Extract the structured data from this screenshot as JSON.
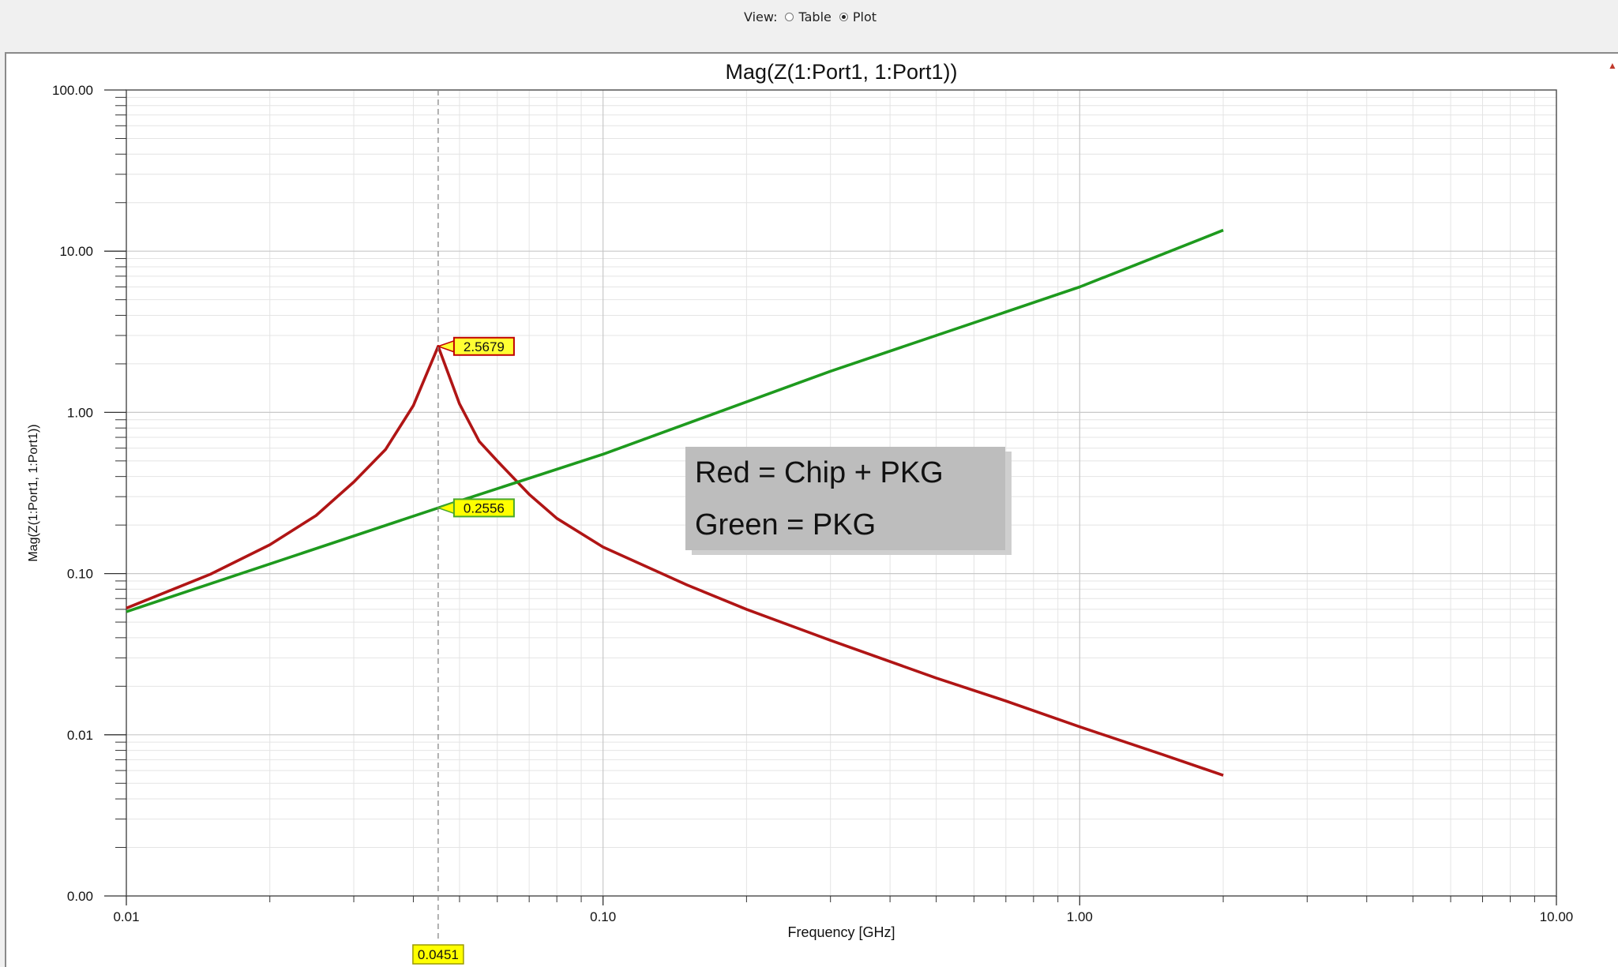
{
  "toolbar": {
    "view_label": "View:",
    "options": [
      {
        "label": "Table",
        "selected": false
      },
      {
        "label": "Plot",
        "selected": true
      }
    ]
  },
  "chart_data": {
    "type": "line",
    "title": "Mag(Z(1:Port1, 1:Port1))",
    "xlabel": "Frequency [GHz]",
    "ylabel": "Mag(Z(1:Port1, 1:Port1))",
    "x_scale": "log",
    "y_scale": "log",
    "xlim": [
      0.01,
      10
    ],
    "ylim": [
      0.001,
      100
    ],
    "x_ticks": [
      {
        "value": 0.01,
        "label": "0.01"
      },
      {
        "value": 0.1,
        "label": "0.10"
      },
      {
        "value": 1,
        "label": "1.00"
      },
      {
        "value": 10,
        "label": "10.00"
      }
    ],
    "y_ticks": [
      {
        "value": 0.001,
        "label": "0.00"
      },
      {
        "value": 0.01,
        "label": "0.01"
      },
      {
        "value": 0.1,
        "label": "0.10"
      },
      {
        "value": 1,
        "label": "1.00"
      },
      {
        "value": 10,
        "label": "10.00"
      },
      {
        "value": 100,
        "label": "100.00"
      }
    ],
    "grid": true,
    "series": [
      {
        "color": "#b01515",
        "x": [
          0.01,
          0.015,
          0.02,
          0.025,
          0.03,
          0.035,
          0.04,
          0.0451,
          0.05,
          0.055,
          0.06,
          0.07,
          0.08,
          0.1,
          0.15,
          0.2,
          0.3,
          0.5,
          0.7,
          1.0,
          1.5,
          2.0
        ],
        "values": [
          0.061,
          0.099,
          0.151,
          0.229,
          0.37,
          0.59,
          1.1,
          2.5679,
          1.13,
          0.66,
          0.5,
          0.31,
          0.22,
          0.146,
          0.085,
          0.06,
          0.0385,
          0.0225,
          0.0162,
          0.0112,
          0.0075,
          0.0056
        ]
      },
      {
        "color": "#1e9a1e",
        "x": [
          0.01,
          0.0451,
          0.1,
          0.3,
          1.0,
          2.0
        ],
        "values": [
          0.058,
          0.2556,
          0.55,
          1.8,
          6.0,
          13.5
        ]
      }
    ],
    "markers": [
      {
        "x": 0.0451,
        "y": 2.5679,
        "label": "2.5679",
        "series": 0
      },
      {
        "x": 0.0451,
        "y": 0.2556,
        "label": "0.2556",
        "series": 1
      }
    ],
    "cursor": {
      "x": 0.0451,
      "label": "0.0451"
    },
    "annotation": [
      "Red = Chip + PKG",
      "Green = PKG"
    ]
  }
}
